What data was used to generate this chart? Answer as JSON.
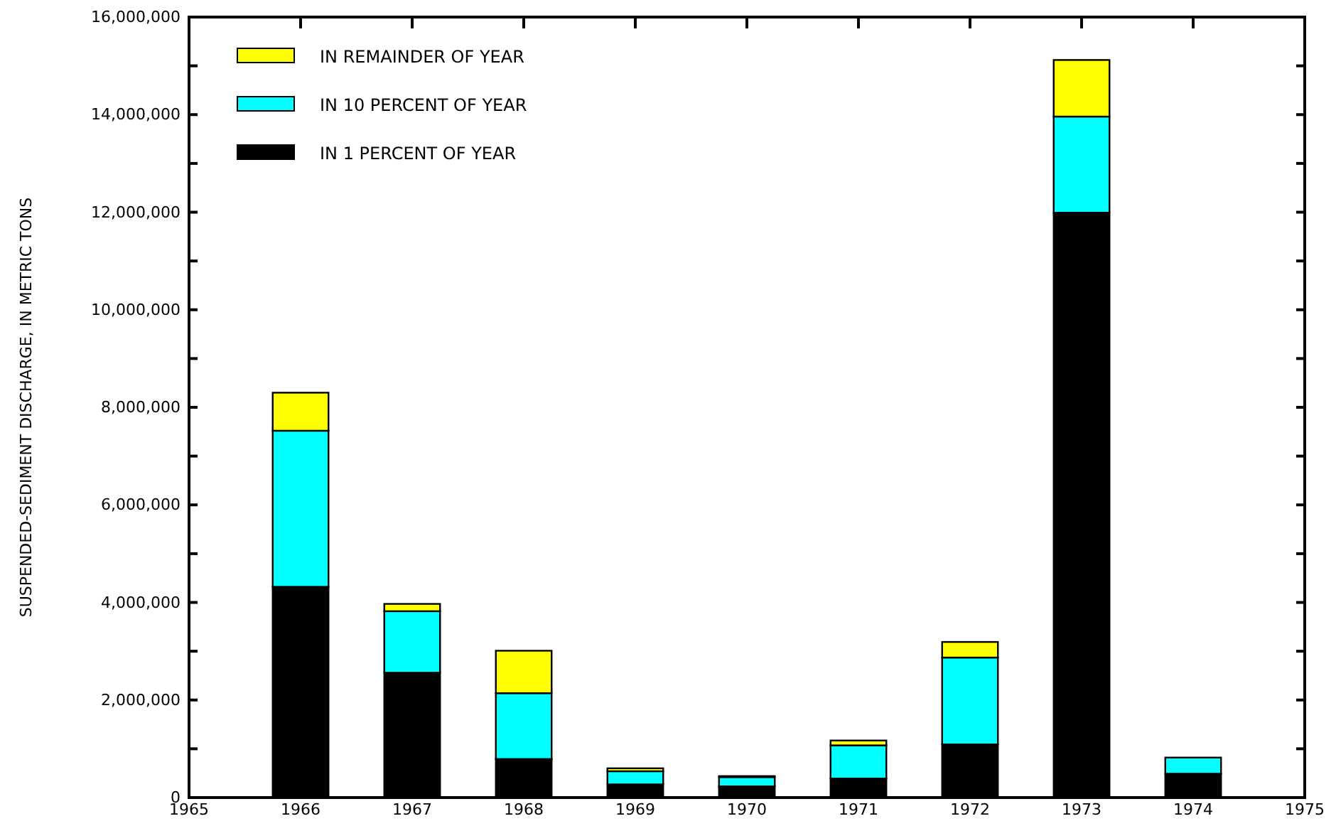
{
  "chart_data": {
    "type": "bar",
    "stacked": true,
    "ylabel": "SUSPENDED-SEDIMENT DISCHARGE, IN METRIC TONS",
    "x": [
      1966,
      1967,
      1968,
      1969,
      1970,
      1971,
      1972,
      1973,
      1974
    ],
    "series": [
      {
        "name": "IN 1 PERCENT OF YEAR",
        "color": "#000000",
        "values": [
          4320000,
          2560000,
          790000,
          270000,
          230000,
          390000,
          1090000,
          11990000,
          490000
        ]
      },
      {
        "name": "IN 10 PERCENT OF YEAR",
        "color": "#00ffff",
        "values": [
          3200000,
          1260000,
          1350000,
          270000,
          190000,
          680000,
          1780000,
          1970000,
          330000
        ]
      },
      {
        "name": "IN REMAINDER OF YEAR",
        "color": "#ffff00",
        "values": [
          780000,
          150000,
          870000,
          60000,
          20000,
          100000,
          320000,
          1160000,
          0
        ]
      }
    ],
    "xlim": [
      1965,
      1975
    ],
    "xticks": [
      1965,
      1966,
      1967,
      1968,
      1969,
      1970,
      1971,
      1972,
      1973,
      1974,
      1975
    ],
    "ylim": [
      0,
      16000000
    ],
    "yticks": [
      {
        "value": 0,
        "label": "0"
      },
      {
        "value": 1000000,
        "label": null
      },
      {
        "value": 2000000,
        "label": "2,000,000"
      },
      {
        "value": 3000000,
        "label": null
      },
      {
        "value": 4000000,
        "label": "4,000,000"
      },
      {
        "value": 5000000,
        "label": null
      },
      {
        "value": 6000000,
        "label": "6,000,000"
      },
      {
        "value": 7000000,
        "label": null
      },
      {
        "value": 8000000,
        "label": "8,000,000"
      },
      {
        "value": 9000000,
        "label": null
      },
      {
        "value": 10000000,
        "label": "10,000,000"
      },
      {
        "value": 11000000,
        "label": null
      },
      {
        "value": 12000000,
        "label": "12,000,000"
      },
      {
        "value": 13000000,
        "label": null
      },
      {
        "value": 14000000,
        "label": "14,000,000"
      },
      {
        "value": 15000000,
        "label": null
      },
      {
        "value": 16000000,
        "label": "16,000,000"
      }
    ],
    "legend": "top left"
  }
}
